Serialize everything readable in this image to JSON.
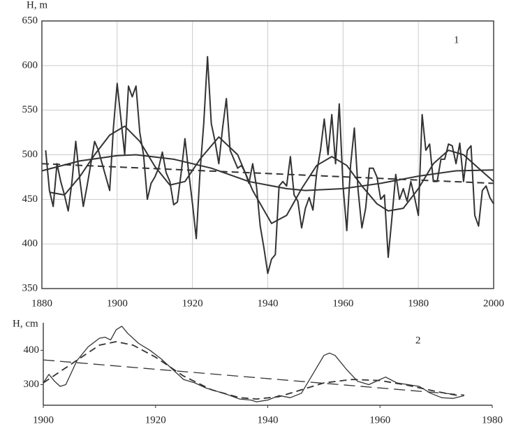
{
  "chart_data": [
    {
      "type": "line",
      "ylabel": "H, m",
      "annotation": "1",
      "xlim": [
        1880,
        2000
      ],
      "ylim": [
        350,
        650
      ],
      "xticks": [
        1880,
        1900,
        1920,
        1940,
        1960,
        1980,
        2000
      ],
      "yticks": [
        350,
        400,
        450,
        500,
        550,
        600,
        650
      ],
      "grid": true,
      "frame": true,
      "series": [
        {
          "color": "#333333",
          "line_style": "solid",
          "width": 2,
          "x": [
            1881,
            1882,
            1883,
            1884,
            1885,
            1886,
            1887,
            1888,
            1889,
            1890,
            1891,
            1892,
            1893,
            1894,
            1895,
            1896,
            1897,
            1898,
            1899,
            1900,
            1901,
            1902,
            1903,
            1904,
            1905,
            1906,
            1907,
            1908,
            1909,
            1910,
            1911,
            1912,
            1913,
            1914,
            1915,
            1916,
            1917,
            1918,
            1919,
            1920,
            1921,
            1922,
            1923,
            1924,
            1925,
            1926,
            1927,
            1928,
            1929,
            1930,
            1931,
            1932,
            1933,
            1934,
            1935,
            1936,
            1937,
            1938,
            1939,
            1940,
            1941,
            1942,
            1943,
            1944,
            1945,
            1946,
            1947,
            1948,
            1949,
            1950,
            1951,
            1952,
            1953,
            1954,
            1955,
            1956,
            1957,
            1958,
            1959,
            1960,
            1961,
            1962,
            1963,
            1964,
            1965,
            1966,
            1967,
            1968,
            1969,
            1970,
            1971,
            1972,
            1973,
            1974,
            1975,
            1976,
            1977,
            1978,
            1979,
            1980,
            1981,
            1982,
            1983,
            1984,
            1985,
            1986,
            1987,
            1988,
            1989,
            1990,
            1991,
            1992,
            1993,
            1994,
            1995,
            1996,
            1997,
            1998,
            1999,
            2000
          ],
          "values": [
            505,
            460,
            442,
            490,
            470,
            455,
            437,
            470,
            515,
            475,
            442,
            465,
            490,
            515,
            505,
            490,
            475,
            460,
            530,
            580,
            540,
            500,
            577,
            565,
            577,
            525,
            500,
            450,
            468,
            475,
            485,
            503,
            480,
            470,
            444,
            447,
            480,
            518,
            480,
            445,
            406,
            480,
            535,
            610,
            535,
            515,
            490,
            530,
            563,
            505,
            495,
            485,
            488,
            480,
            468,
            490,
            465,
            420,
            395,
            367,
            383,
            388,
            465,
            470,
            465,
            498,
            455,
            448,
            418,
            440,
            452,
            438,
            480,
            505,
            540,
            500,
            545,
            490,
            557,
            465,
            415,
            488,
            530,
            460,
            418,
            440,
            485,
            485,
            475,
            450,
            455,
            385,
            430,
            478,
            450,
            462,
            448,
            470,
            452,
            432,
            545,
            505,
            512,
            470,
            470,
            495,
            495,
            512,
            510,
            490,
            513,
            470,
            505,
            510,
            432,
            420,
            460,
            465,
            452,
            445
          ]
        },
        {
          "color": "#333333",
          "line_style": "solid",
          "width": 2,
          "x": [
            1882,
            1886,
            1890,
            1894,
            1898,
            1902,
            1906,
            1910,
            1914,
            1918,
            1922,
            1927,
            1932,
            1936,
            1941,
            1945,
            1949,
            1953,
            1957,
            1961,
            1965,
            1969,
            1972,
            1976,
            1980,
            1984,
            1988,
            1992,
            1996,
            2000
          ],
          "values": [
            458,
            455,
            475,
            500,
            522,
            532,
            515,
            487,
            466,
            470,
            495,
            520,
            500,
            460,
            423,
            432,
            462,
            488,
            498,
            488,
            465,
            445,
            437,
            440,
            462,
            490,
            505,
            500,
            485,
            470
          ]
        },
        {
          "color": "#333333",
          "line_style": "solid",
          "width": 2,
          "x": [
            1880,
            1890,
            1900,
            1905,
            1915,
            1925,
            1935,
            1945,
            1950,
            1960,
            1970,
            1980,
            1990,
            2000
          ],
          "values": [
            482,
            493,
            499,
            500,
            495,
            485,
            470,
            462,
            460,
            462,
            468,
            476,
            482,
            483
          ]
        },
        {
          "color": "#333333",
          "line_style": "dashed",
          "width": 2,
          "x": [
            1880,
            2000
          ],
          "values": [
            490,
            468
          ]
        }
      ]
    },
    {
      "type": "line",
      "ylabel": "H, cm",
      "annotation": "2",
      "xlim": [
        1900,
        1980
      ],
      "ylim": [
        240,
        480
      ],
      "xticks": [
        1900,
        1920,
        1940,
        1960,
        1980
      ],
      "yticks": [
        300,
        400
      ],
      "grid": false,
      "frame": false,
      "series": [
        {
          "color": "#333333",
          "line_style": "solid",
          "width": 1.3,
          "x": [
            1900,
            1901,
            1902,
            1903,
            1904,
            1906,
            1908,
            1910,
            1911,
            1912,
            1913,
            1914,
            1915,
            1917,
            1919,
            1921,
            1923,
            1925,
            1927,
            1929,
            1931,
            1933,
            1935,
            1937,
            1938,
            1940,
            1942,
            1944,
            1946,
            1948,
            1950,
            1951,
            1952,
            1954,
            1956,
            1958,
            1960,
            1961,
            1963,
            1965,
            1967,
            1969,
            1971,
            1973,
            1975
          ],
          "values": [
            305,
            330,
            310,
            295,
            300,
            370,
            410,
            435,
            438,
            430,
            460,
            470,
            450,
            420,
            400,
            375,
            345,
            315,
            305,
            290,
            280,
            270,
            258,
            255,
            250,
            255,
            268,
            262,
            275,
            330,
            385,
            392,
            385,
            345,
            310,
            300,
            315,
            322,
            305,
            300,
            295,
            275,
            262,
            260,
            268
          ]
        },
        {
          "color": "#333333",
          "line_style": "dashed",
          "width": 1.8,
          "x": [
            1900,
            1905,
            1910,
            1913,
            1916,
            1920,
            1925,
            1930,
            1935,
            1938,
            1942,
            1946,
            1950,
            1955,
            1960,
            1965,
            1970,
            1974
          ],
          "values": [
            305,
            360,
            415,
            425,
            415,
            380,
            325,
            285,
            262,
            258,
            265,
            285,
            305,
            315,
            312,
            298,
            280,
            268
          ]
        },
        {
          "color": "#333333",
          "line_style": "longdash",
          "width": 1.3,
          "x": [
            1900,
            1975
          ],
          "values": [
            372,
            270
          ]
        }
      ]
    }
  ]
}
